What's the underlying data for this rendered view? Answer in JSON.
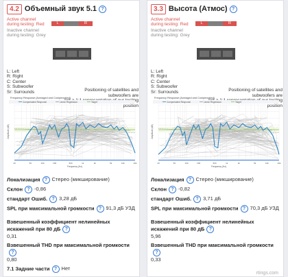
{
  "footer": "rtings.com",
  "columns": [
    {
      "badge": "4.2",
      "title": "Объемный звук 5.1",
      "active_text": [
        "Active channel",
        "during testing: Red"
      ],
      "inactive_text": [
        "Inactive channel",
        "during testing: Grey"
      ],
      "channels": [
        {
          "label": "L",
          "state": "red"
        },
        {
          "label": "",
          "state": "grey"
        },
        {
          "label": "R",
          "state": "red"
        }
      ],
      "legend": [
        "L: Left",
        "R: Right",
        "C: Center",
        "S: Subwoofer",
        "Sr: Surrounds"
      ],
      "note": [
        "Positioning of satellites and subwoofers are",
        "not a 1:1 representation of our testing position"
      ],
      "chart_title": "Frequency Response (Averaged and Compensated)",
      "chart_legend": [
        "Compensated Response",
        "Linear Regression",
        "Target"
      ],
      "y_label": "Amplitude (dB)",
      "x_label": "Frequency (Hz)",
      "x_ticks": [
        "20",
        "50",
        "100",
        "200",
        "500",
        "1k",
        "2k",
        "5k",
        "10k",
        "20k"
      ],
      "metrics": [
        {
          "label": "Локализация",
          "value": "Стерео (микширование)",
          "block": false
        },
        {
          "label": "Склон",
          "value": "-0,86",
          "block": false
        },
        {
          "label": "стандарт Ошиб.",
          "value": "3,28 дБ",
          "block": false
        },
        {
          "label": "SPL при максимальной громкости",
          "value": "91,3 дБ УЗД",
          "block": false
        },
        {
          "label": "Взвешенный коэффициент нелинейных искажений при 80 дБ",
          "value": "0,31",
          "block": true
        },
        {
          "label": "Взвешенный THD при максимальной громкости",
          "value": "0,80",
          "block": true
        },
        {
          "label": "7.1 Задние части",
          "value": "Нет",
          "block": false
        }
      ]
    },
    {
      "badge": "3.3",
      "title": "Высота (Атмос)",
      "active_text": [
        "Active channel",
        "during testing: Red"
      ],
      "inactive_text": [
        "Inactive channel",
        "during testing: Grey"
      ],
      "channels": [
        {
          "label": "L",
          "state": "red"
        },
        {
          "label": "",
          "state": "grey"
        },
        {
          "label": "R",
          "state": "red"
        }
      ],
      "legend": [
        "L: Left",
        "R: Right",
        "C: Center",
        "S: Subwoofer",
        "Sr: Surrounds"
      ],
      "note": [
        "Positioning of satellites and subwoofers are",
        "not a 1:1 representation of our testing position"
      ],
      "chart_title": "Frequency Response (Averaged and Compensated)",
      "chart_legend": [
        "Compensated Response",
        "Linear Regression",
        "Target"
      ],
      "y_label": "Amplitude (dB)",
      "x_label": "Frequency (Hz)",
      "x_ticks": [
        "20",
        "50",
        "100",
        "200",
        "500",
        "1k",
        "2k",
        "5k",
        "10k",
        "20k"
      ],
      "metrics": [
        {
          "label": "Локализация",
          "value": "Стерео (микширование)",
          "block": false
        },
        {
          "label": "Склон",
          "value": "-0,82",
          "block": false
        },
        {
          "label": "стандарт Ошиб.",
          "value": "3,71 дБ",
          "block": false
        },
        {
          "label": "SPL при максимальной громкости",
          "value": "70,3 дБ УЗД",
          "block": false
        },
        {
          "label": "Взвешенный коэффициент нелинейных искажений при 80 дБ",
          "value": "5,96",
          "block": true
        },
        {
          "label": "Взвешенный THD при максимальной громкости",
          "value": "0,33",
          "block": true
        }
      ]
    }
  ],
  "chart_data": [
    {
      "type": "line",
      "title": "Frequency Response (Averaged and Compensated)",
      "xlabel": "Frequency (Hz)",
      "ylabel": "Amplitude (dB)",
      "x_scale": "log",
      "xlim": [
        20,
        20000
      ],
      "ylim": [
        -20,
        20
      ],
      "x": [
        20,
        30,
        40,
        50,
        60,
        70,
        80,
        90,
        100,
        130,
        150,
        170,
        200,
        250,
        300,
        350,
        400,
        450,
        500,
        600,
        700,
        800,
        1000,
        1200,
        1500,
        2000,
        2500,
        3000,
        4000,
        5000,
        6000,
        7000,
        8000,
        10000,
        12000,
        14000,
        16000,
        18000,
        20000
      ],
      "series": [
        {
          "name": "Compensated Response",
          "values": [
            -16,
            -11,
            -3,
            1,
            4,
            3,
            -2,
            0,
            -9,
            0,
            5,
            2,
            5,
            -4,
            2,
            3,
            6,
            3,
            -10,
            -12,
            6,
            4,
            7,
            2,
            5,
            3,
            6,
            4,
            3,
            5,
            2,
            4,
            1,
            3,
            0,
            -4,
            -8,
            -12,
            -16
          ]
        },
        {
          "name": "Linear Regression",
          "values": [
            2.4,
            2.2,
            2.0,
            1.9,
            1.8,
            1.7,
            1.7,
            1.6,
            1.6,
            1.4,
            1.3,
            1.3,
            1.2,
            1.1,
            1.0,
            0.9,
            0.9,
            0.8,
            0.8,
            0.7,
            0.6,
            0.6,
            0.5,
            0.4,
            0.3,
            0.2,
            0.1,
            0.0,
            -0.1,
            -0.2,
            -0.3,
            -0.3,
            -0.4,
            -0.5,
            -0.6,
            -0.6,
            -0.7,
            -0.7,
            -0.8
          ]
        },
        {
          "name": "Target",
          "values": [
            1.5,
            1.5,
            1.5,
            1.5,
            1.5,
            1.5,
            1.5,
            1.5,
            1.5,
            1.5,
            1.5,
            1.5,
            1.5,
            1.5,
            1.5,
            1.5,
            1.5,
            1.5,
            1.5,
            1.5,
            1.5,
            1.5,
            1.5,
            1.5,
            1.5,
            1.5,
            1.5,
            1.5,
            1.5,
            1.5,
            1.5,
            1.5,
            1.5,
            1.5,
            1.5,
            1.5,
            1.5,
            1.5,
            1.5
          ]
        }
      ]
    },
    {
      "type": "line",
      "title": "Frequency Response (Averaged and Compensated)",
      "xlabel": "Frequency (Hz)",
      "ylabel": "Amplitude (dB)",
      "x_scale": "log",
      "xlim": [
        20,
        20000
      ],
      "ylim": [
        -20,
        20
      ],
      "x": [
        20,
        30,
        40,
        50,
        60,
        70,
        80,
        90,
        100,
        130,
        150,
        170,
        200,
        250,
        300,
        350,
        400,
        450,
        500,
        600,
        700,
        800,
        1000,
        1200,
        1500,
        2000,
        2500,
        3000,
        4000,
        5000,
        6000,
        7000,
        8000,
        10000,
        12000,
        14000,
        16000,
        18000,
        20000
      ],
      "series": [
        {
          "name": "Compensated Response",
          "values": [
            -17,
            -12,
            -4,
            1,
            4,
            3,
            -3,
            0,
            -10,
            0,
            5,
            2,
            5,
            -5,
            2,
            3,
            6,
            3,
            -11,
            -12,
            6,
            4,
            7,
            2,
            5,
            3,
            6,
            4,
            3,
            5,
            2,
            4,
            1,
            3,
            0,
            -3,
            -8,
            -12,
            -17
          ]
        },
        {
          "name": "Linear Regression",
          "values": [
            2.3,
            2.1,
            1.9,
            1.8,
            1.7,
            1.7,
            1.6,
            1.6,
            1.5,
            1.4,
            1.3,
            1.3,
            1.2,
            1.1,
            1.0,
            0.9,
            0.9,
            0.8,
            0.8,
            0.7,
            0.6,
            0.6,
            0.5,
            0.4,
            0.3,
            0.2,
            0.1,
            0.0,
            -0.1,
            -0.2,
            -0.2,
            -0.3,
            -0.4,
            -0.5,
            -0.5,
            -0.6,
            -0.6,
            -0.7,
            -0.7
          ]
        },
        {
          "name": "Target",
          "values": [
            1.5,
            1.5,
            1.5,
            1.5,
            1.5,
            1.5,
            1.5,
            1.5,
            1.5,
            1.5,
            1.5,
            1.5,
            1.5,
            1.5,
            1.5,
            1.5,
            1.5,
            1.5,
            1.5,
            1.5,
            1.5,
            1.5,
            1.5,
            1.5,
            1.5,
            1.5,
            1.5,
            1.5,
            1.5,
            1.5,
            1.5,
            1.5,
            1.5,
            1.5,
            1.5,
            1.5,
            1.5,
            1.5,
            1.5
          ]
        }
      ]
    }
  ]
}
